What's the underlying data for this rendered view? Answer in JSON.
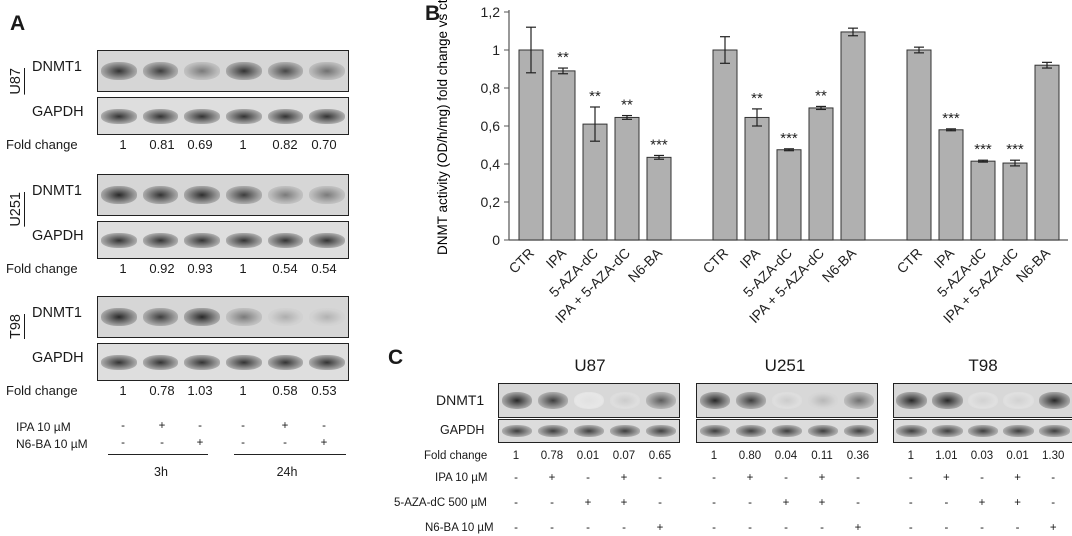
{
  "panels": {
    "a": "A",
    "b": "B",
    "c": "C"
  },
  "panel_a": {
    "fold_label": "Fold change",
    "row_labels": {
      "dnmt1": "DNMT1",
      "gapdh": "GAPDH"
    },
    "cells": [
      {
        "name": "U87",
        "fold": [
          "1",
          "0.81",
          "0.69",
          "1",
          "0.82",
          "0.70"
        ]
      },
      {
        "name": "U251",
        "fold": [
          "1",
          "0.92",
          "0.93",
          "1",
          "0.54",
          "0.54"
        ]
      },
      {
        "name": "T98",
        "fold": [
          "1",
          "0.78",
          "1.03",
          "1",
          "0.58",
          "0.53"
        ]
      }
    ],
    "treatments": [
      {
        "label": "IPA 10 µM",
        "signs": [
          "-",
          "+",
          "-",
          "-",
          "+",
          "-"
        ]
      },
      {
        "label": "N6-BA 10 µM",
        "signs": [
          "-",
          "-",
          "+",
          "-",
          "-",
          "+"
        ]
      }
    ],
    "timepoints": [
      "3h",
      "24h"
    ]
  },
  "chart_data": {
    "type": "bar",
    "ylabel": "DNMT activity (OD/h/mg) fold change vs ctr",
    "ylim": [
      0,
      1.2
    ],
    "yticks": [
      "0",
      "0,2",
      "0,4",
      "0,6",
      "0,8",
      "1",
      "1,2"
    ],
    "bar_color": "#b0b0b0",
    "groups": [
      {
        "categories": [
          "CTR",
          "IPA",
          "5-AZA-dC",
          "IPA + 5-AZA-dC",
          "N6-BA"
        ],
        "values": [
          1.0,
          0.89,
          0.61,
          0.645,
          0.435
        ],
        "errors": [
          0.12,
          0.015,
          0.09,
          0.01,
          0.01
        ],
        "significance": [
          "",
          "**",
          "**",
          "**",
          "***"
        ]
      },
      {
        "categories": [
          "CTR",
          "IPA",
          "5-AZA-dC",
          "IPA + 5-AZA-dC",
          "N6-BA"
        ],
        "values": [
          1.0,
          0.645,
          0.475,
          0.695,
          1.095
        ],
        "errors": [
          0.07,
          0.045,
          0.005,
          0.008,
          0.02
        ],
        "significance": [
          "",
          "**",
          "***",
          "**",
          ""
        ]
      },
      {
        "categories": [
          "CTR",
          "IPA",
          "5-AZA-dC",
          "IPA + 5-AZA-dC",
          "N6-BA"
        ],
        "values": [
          1.0,
          0.58,
          0.415,
          0.405,
          0.92
        ],
        "errors": [
          0.015,
          0.005,
          0.005,
          0.015,
          0.015
        ],
        "significance": [
          "",
          "***",
          "***",
          "***",
          ""
        ]
      }
    ]
  },
  "panel_c": {
    "fold_label": "Fold change",
    "row_labels": {
      "dnmt1": "DNMT1",
      "gapdh": "GAPDH"
    },
    "cells": [
      {
        "name": "U87",
        "fold": [
          "1",
          "0.78",
          "0.01",
          "0.07",
          "0.65"
        ]
      },
      {
        "name": "U251",
        "fold": [
          "1",
          "0.80",
          "0.04",
          "0.11",
          "0.36"
        ]
      },
      {
        "name": "T98",
        "fold": [
          "1",
          "1.01",
          "0.03",
          "0.01",
          "1.30"
        ]
      }
    ],
    "treatments": [
      {
        "label": "IPA 10 µM",
        "signs": [
          "-",
          "+",
          "-",
          "+",
          "-"
        ]
      },
      {
        "label": "5-AZA-dC 500 µM",
        "signs": [
          "-",
          "-",
          "+",
          "+",
          "-"
        ]
      },
      {
        "label": "N6-BA 10 µM",
        "signs": [
          "-",
          "-",
          "-",
          "-",
          "+"
        ]
      }
    ]
  }
}
